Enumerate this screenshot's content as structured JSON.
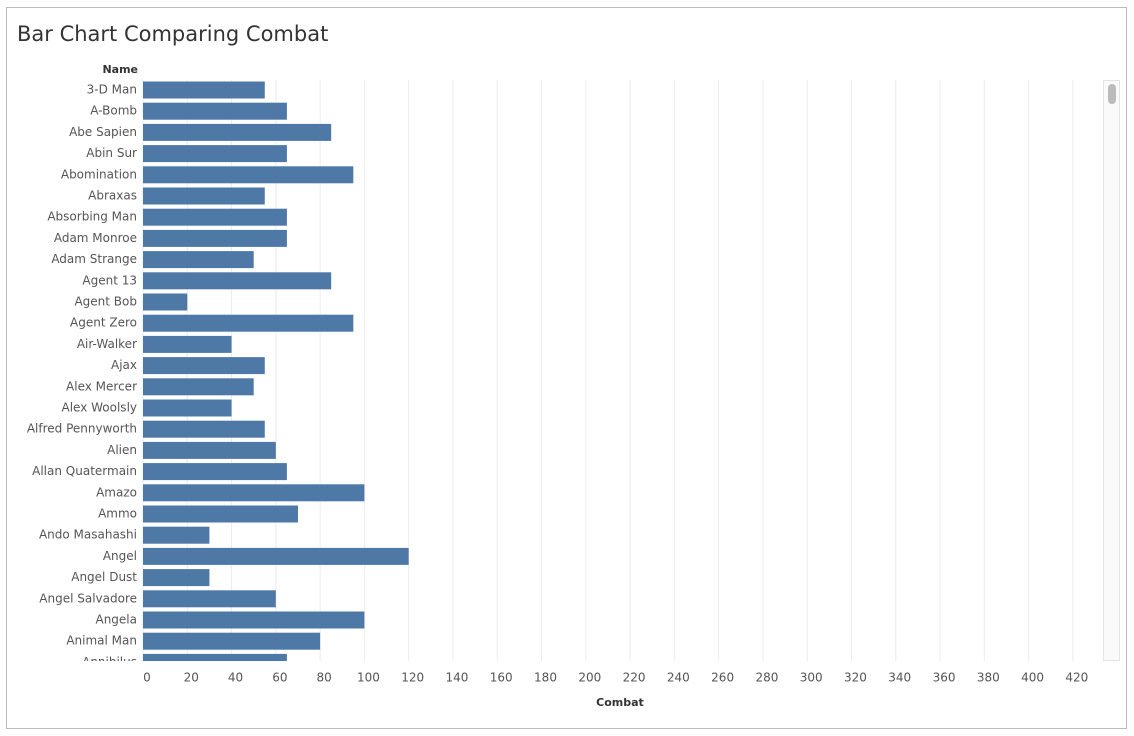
{
  "chart_data": {
    "type": "bar",
    "orientation": "horizontal",
    "title": "Bar Chart Comparing Combat",
    "y_label": "Name",
    "x_label": "Combat",
    "categories": [
      "3-D Man",
      "A-Bomb",
      "Abe Sapien",
      "Abin Sur",
      "Abomination",
      "Abraxas",
      "Absorbing Man",
      "Adam Monroe",
      "Adam Strange",
      "Agent 13",
      "Agent Bob",
      "Agent Zero",
      "Air-Walker",
      "Ajax",
      "Alex Mercer",
      "Alex Woolsly",
      "Alfred Pennyworth",
      "Alien",
      "Allan Quatermain",
      "Amazo",
      "Ammo",
      "Ando Masahashi",
      "Angel",
      "Angel Dust",
      "Angel Salvadore",
      "Angela",
      "Animal Man",
      "Annihilus"
    ],
    "values": [
      55,
      65,
      85,
      65,
      95,
      55,
      65,
      65,
      50,
      85,
      20,
      95,
      40,
      55,
      50,
      40,
      55,
      60,
      65,
      100,
      70,
      30,
      120,
      30,
      60,
      100,
      80,
      65
    ],
    "color": "#4e79a7",
    "xlim": [
      0,
      430
    ],
    "xticks": [
      0,
      20,
      40,
      60,
      80,
      100,
      120,
      140,
      160,
      180,
      200,
      220,
      240,
      260,
      280,
      300,
      320,
      340,
      360,
      380,
      400,
      420
    ],
    "grid": true
  }
}
